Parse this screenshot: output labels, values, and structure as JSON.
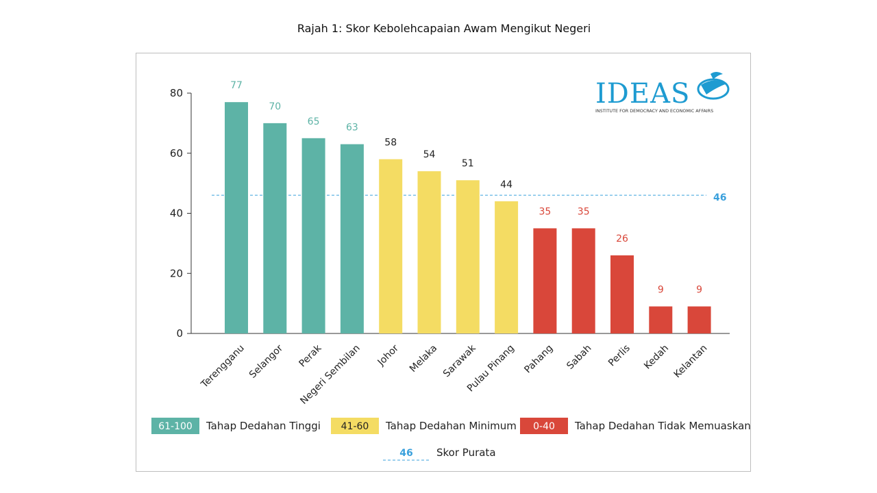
{
  "page": {
    "title": "Rajah 1: Skor Kebolehcapaian Awam Mengikut Negeri"
  },
  "logo": {
    "name": "IDEAS",
    "subtitle": "INSTITUTE FOR DEMOCRACY AND ECONOMIC AFFAIRS",
    "icon": "bird-globe-icon",
    "color": "#1e9bd1"
  },
  "colors": {
    "high": "#5db3a6",
    "medium": "#f4dc63",
    "low": "#d9473a",
    "average": "#3aa0dc",
    "axis": "#333333"
  },
  "legend": {
    "items": [
      {
        "range": "61-100",
        "label": "Tahap Dedahan Tinggi",
        "level": "high"
      },
      {
        "range": "41-60",
        "label": "Tahap Dedahan Minimum",
        "level": "medium"
      },
      {
        "range": "0-40",
        "label": "Tahap Dedahan Tidak Memuaskan",
        "level": "low"
      }
    ],
    "average": {
      "value": "46",
      "label": "Skor Purata"
    }
  },
  "chart_data": {
    "type": "bar",
    "title": "Rajah 1: Skor Kebolehcapaian Awam Mengikut Negeri",
    "xlabel": "",
    "ylabel": "",
    "ylim": [
      0,
      80
    ],
    "yticks": [
      0,
      20,
      40,
      60,
      80
    ],
    "grid": false,
    "legend_position": "bottom",
    "categories": [
      "Terengganu",
      "Selangor",
      "Perak",
      "Negeri Sembilan",
      "Johor",
      "Melaka",
      "Sarawak",
      "Pulau Pinang",
      "Pahang",
      "Sabah",
      "Perlis",
      "Kedah",
      "Kelantan"
    ],
    "values": [
      77,
      70,
      65,
      63,
      58,
      54,
      51,
      44,
      35,
      35,
      26,
      9,
      9
    ],
    "levels": [
      "high",
      "high",
      "high",
      "high",
      "medium",
      "medium",
      "medium",
      "medium",
      "low",
      "low",
      "low",
      "low",
      "low"
    ],
    "average_line": {
      "value": 46,
      "label": "46"
    }
  }
}
